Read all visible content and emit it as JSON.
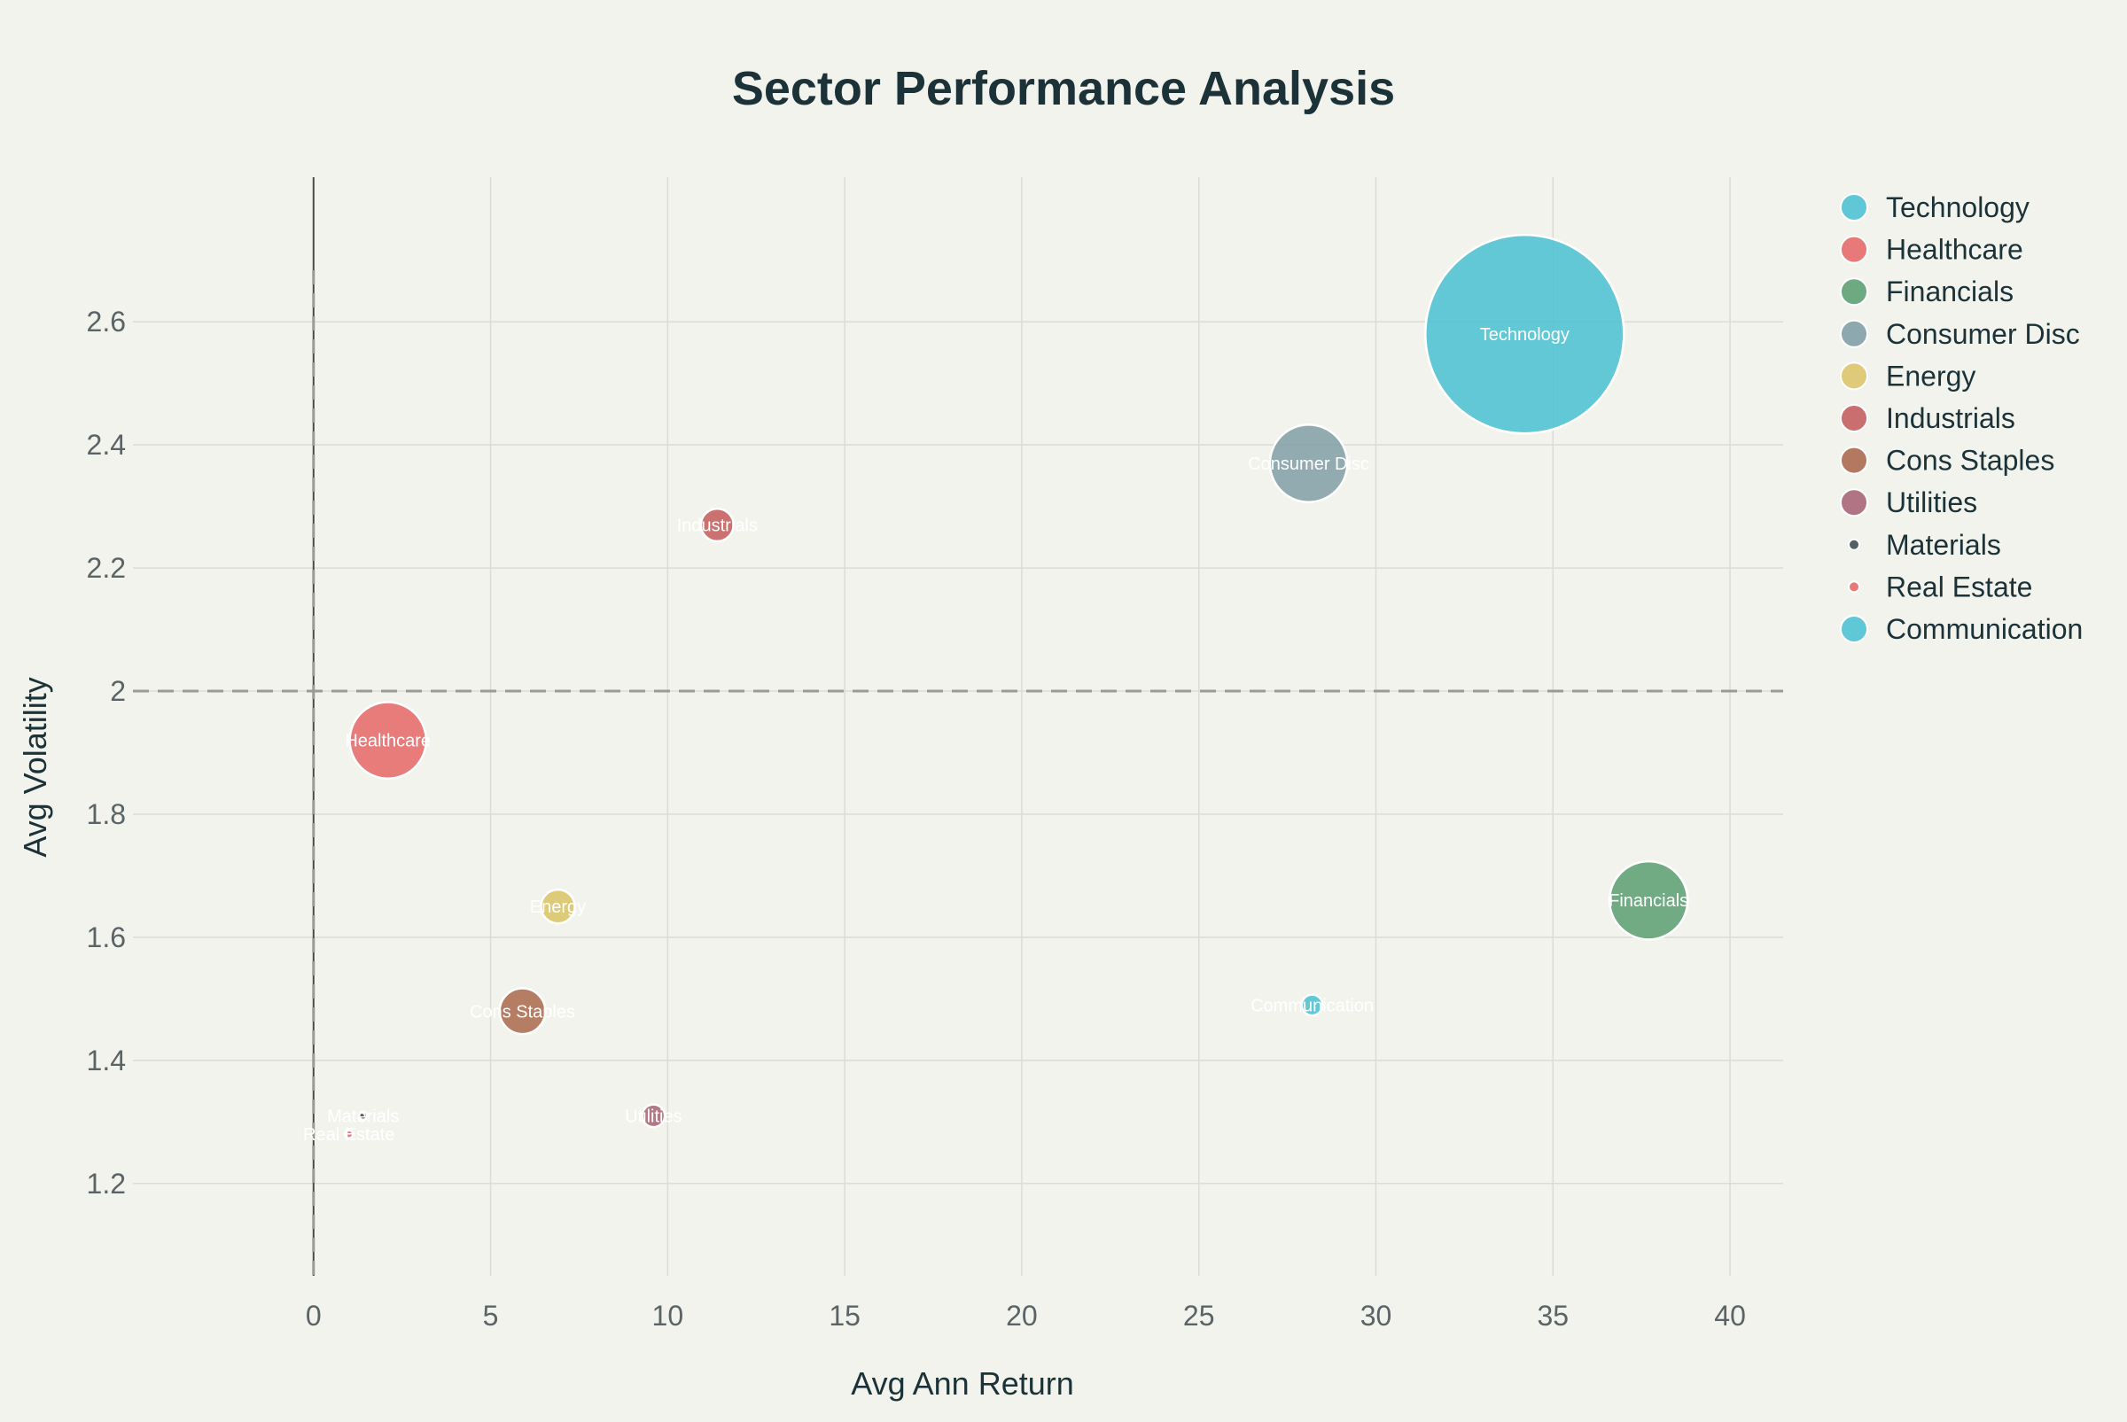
{
  "chart_data": {
    "type": "scatter",
    "title": "Sector Performance Analysis",
    "xlabel": "Avg Ann Return",
    "ylabel": "Avg Volatility",
    "xlim": [
      -5.1,
      41.5
    ],
    "ylim": [
      1.05,
      2.835
    ],
    "x_ticks": [
      0,
      5,
      10,
      15,
      20,
      25,
      30,
      35,
      40
    ],
    "x_tick_labels": [
      "0",
      "5",
      "10",
      "15",
      "20",
      "25",
      "30",
      "35",
      "40"
    ],
    "y_ticks": [
      1.2,
      1.4,
      1.6,
      1.8,
      2.0,
      2.2,
      2.4,
      2.6
    ],
    "y_tick_labels": [
      "1.2",
      "1.4",
      "1.6",
      "1.8",
      "2",
      "2.2",
      "2.4",
      "2.6"
    ],
    "reference_lines": {
      "vertical_x": 0,
      "horizontal_y": 2.0
    },
    "grid": true,
    "legend_position": "right",
    "bubble_size_encoding": "relative size",
    "series": [
      {
        "name": "Technology",
        "x": 34.2,
        "y": 2.58,
        "size": 100,
        "color": "#4fc2d3"
      },
      {
        "name": "Healthcare",
        "x": 2.1,
        "y": 1.92,
        "size": 14.8,
        "color": "#e56b6b"
      },
      {
        "name": "Financials",
        "x": 37.7,
        "y": 1.66,
        "size": 15.5,
        "color": "#5ea174"
      },
      {
        "name": "Consumer Disc",
        "x": 28.1,
        "y": 2.37,
        "size": 15.2,
        "color": "#83a0a8"
      },
      {
        "name": "Energy",
        "x": 6.9,
        "y": 1.65,
        "size": 2.9,
        "color": "#dbc56a"
      },
      {
        "name": "Industrials",
        "x": 11.4,
        "y": 2.27,
        "size": 2.7,
        "color": "#c56060"
      },
      {
        "name": "Cons Staples",
        "x": 5.9,
        "y": 1.48,
        "size": 5.3,
        "color": "#ac6c50"
      },
      {
        "name": "Utilities",
        "x": 9.6,
        "y": 1.31,
        "size": 1.3,
        "color": "#a86678"
      },
      {
        "name": "Materials",
        "x": 1.4,
        "y": 1.31,
        "size": 0.15,
        "color": "#3e5055"
      },
      {
        "name": "Real Estate",
        "x": 1.0,
        "y": 1.28,
        "size": 0.1,
        "color": "#e56b6b"
      },
      {
        "name": "Communication",
        "x": 28.2,
        "y": 1.49,
        "size": 1.1,
        "color": "#4fc2d3"
      }
    ]
  }
}
